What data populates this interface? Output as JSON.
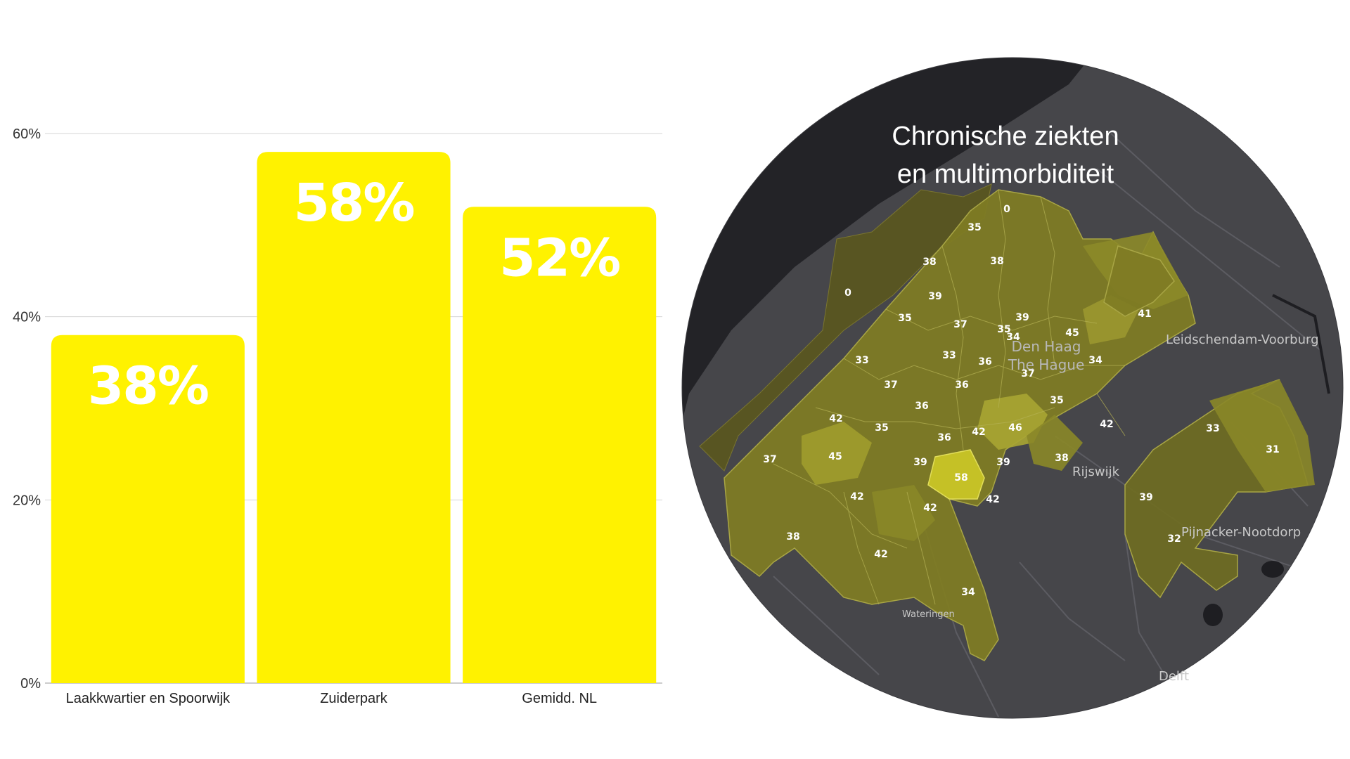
{
  "chart_data": {
    "type": "bar",
    "categories": [
      "Laakkwartier en Spoorwijk",
      "Zuiderpark",
      "Gemidd. NL"
    ],
    "values": [
      38,
      58,
      52
    ],
    "value_labels": [
      "38%",
      "58%",
      "52%"
    ],
    "ylim": [
      0,
      60
    ],
    "yticks": [
      0,
      20,
      40,
      60
    ],
    "ytick_labels": [
      "0%",
      "20%",
      "40%",
      "60%"
    ],
    "bar_color": "#FFF200",
    "grid": true,
    "title": "",
    "xlabel": "",
    "ylabel": ""
  },
  "map": {
    "title_line1": "Chronische ziekten",
    "title_line2": "en multimorbiditeit",
    "city_name_1": "Den Haag",
    "city_name_2": "The Hague",
    "places": {
      "leidschendam": "Leidschendam-Voorburg",
      "rijswijk": "Rijswijk",
      "pijnacker": "Pijnacker-Nootdorp",
      "wateringen": "Wateringen",
      "delft": "Delft"
    },
    "area_values": [
      "0",
      "35",
      "38",
      "38",
      "0",
      "39",
      "35",
      "39",
      "37",
      "35",
      "34",
      "45",
      "41",
      "33",
      "33",
      "36",
      "37",
      "34",
      "37",
      "36",
      "36",
      "35",
      "42",
      "35",
      "42",
      "46",
      "36",
      "42",
      "37",
      "45",
      "39",
      "58",
      "39",
      "38",
      "33",
      "31",
      "42",
      "42",
      "42",
      "39",
      "32",
      "38",
      "42",
      "34"
    ]
  }
}
